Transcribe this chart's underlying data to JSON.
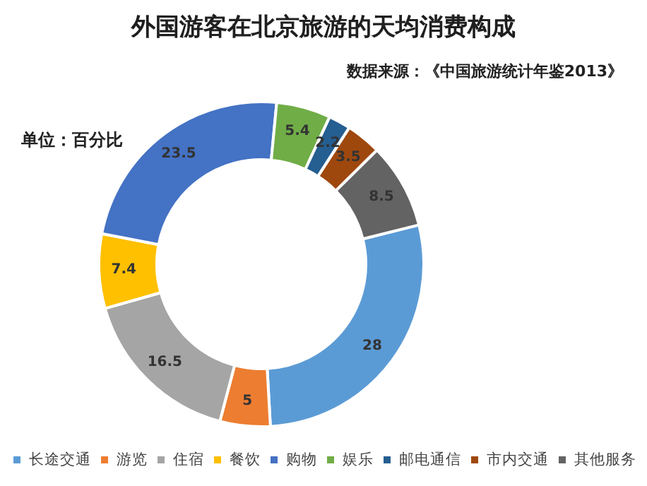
{
  "chart_data": {
    "type": "donut",
    "title": "外国游客在北京旅游的天均消费构成",
    "subtitle": "数据来源：《中国旅游统计年鉴2013》",
    "annotations": [
      "单位：百分比"
    ],
    "categories": [
      "长途交通",
      "游览",
      "住宿",
      "餐饮",
      "购物",
      "娱乐",
      "邮电通信",
      "市内交通",
      "其他服务"
    ],
    "values": [
      28,
      5,
      16.5,
      7.4,
      23.5,
      5.4,
      2.2,
      3.5,
      8.5
    ],
    "colors": [
      "#5b9bd5",
      "#ed7d31",
      "#a5a5a5",
      "#ffc000",
      "#4472c4",
      "#70ad47",
      "#255e91",
      "#9e480e",
      "#636363"
    ],
    "data_labels": true,
    "legend": "bottom"
  }
}
